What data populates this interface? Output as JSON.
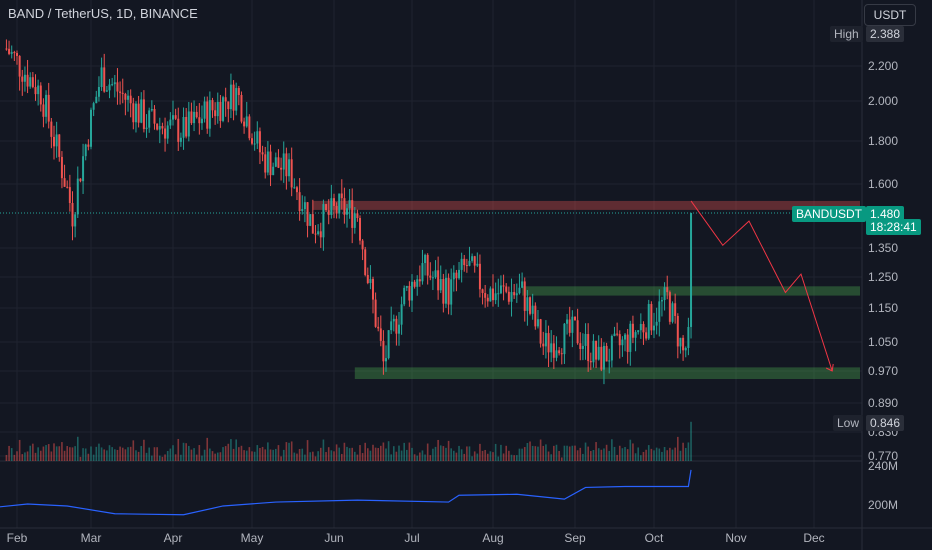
{
  "header": {
    "title": "BAND / TetherUS, 1D, BINANCE",
    "currency_button": "USDT"
  },
  "price_scale": {
    "ticks": [
      "2.200",
      "2.000",
      "1.800",
      "1.600",
      "1.480",
      "1.350",
      "1.250",
      "1.150",
      "1.050",
      "0.970",
      "0.890",
      "0.830",
      "0.770"
    ],
    "high_label": "High",
    "high_value": "2.388",
    "low_label": "Low",
    "low_value": "0.846",
    "symbol_tag": "BANDUSDT",
    "last_price": "1.480",
    "countdown": "18:28:41"
  },
  "volume_scale": {
    "ticks": [
      "240M",
      "200M"
    ]
  },
  "time_axis": {
    "labels": [
      "Feb",
      "Mar",
      "Apr",
      "May",
      "Jun",
      "Jul",
      "Aug",
      "Sep",
      "Oct",
      "Nov",
      "Dec"
    ]
  },
  "colors": {
    "background": "#131722",
    "up": "#26a69a",
    "down": "#ef5350",
    "resistance_zone": "#ef5350",
    "support_zone": "#4caf50",
    "projection": "#f23645",
    "obv": "#2962ff"
  },
  "chart_data": {
    "type": "candlestick",
    "symbol": "BANDUSDT",
    "interval": "1D",
    "exchange": "BINANCE",
    "quote": "USDT",
    "ylim": [
      0.74,
      2.45
    ],
    "high": 2.388,
    "low": 0.846,
    "last": 1.48,
    "key_prices": [
      {
        "date": "2021-01-28",
        "price": 2.3
      },
      {
        "date": "2021-02-10",
        "price": 2.05
      },
      {
        "date": "2021-02-22",
        "price": 1.48
      },
      {
        "date": "2021-03-05",
        "price": 2.15
      },
      {
        "date": "2021-03-22",
        "price": 1.9
      },
      {
        "date": "2021-04-05",
        "price": 1.85
      },
      {
        "date": "2021-04-25",
        "price": 2.05
      },
      {
        "date": "2021-05-05",
        "price": 1.72
      },
      {
        "date": "2021-05-15",
        "price": 1.66
      },
      {
        "date": "2021-05-24",
        "price": 1.43
      },
      {
        "date": "2021-06-03",
        "price": 1.5
      },
      {
        "date": "2021-06-10",
        "price": 1.48
      },
      {
        "date": "2021-06-14",
        "price": 1.25
      },
      {
        "date": "2021-06-20",
        "price": 0.99
      },
      {
        "date": "2021-06-28",
        "price": 1.19
      },
      {
        "date": "2021-07-05",
        "price": 1.28
      },
      {
        "date": "2021-07-15",
        "price": 1.2
      },
      {
        "date": "2021-07-22",
        "price": 1.29
      },
      {
        "date": "2021-07-30",
        "price": 1.2
      },
      {
        "date": "2021-08-12",
        "price": 1.2
      },
      {
        "date": "2021-08-20",
        "price": 1.04
      },
      {
        "date": "2021-09-01",
        "price": 1.08
      },
      {
        "date": "2021-09-10",
        "price": 1.0
      },
      {
        "date": "2021-09-20",
        "price": 1.05
      },
      {
        "date": "2021-10-01",
        "price": 1.13
      },
      {
        "date": "2021-10-06",
        "price": 1.18
      },
      {
        "date": "2021-10-12",
        "price": 1.02
      },
      {
        "date": "2021-10-14",
        "price": 1.05
      },
      {
        "date": "2021-10-15",
        "price": 1.48
      }
    ],
    "zones": [
      {
        "name": "resistance",
        "from": 1.5,
        "to": 1.53,
        "start": "2021-05-24",
        "end": "2021-12-20"
      },
      {
        "name": "support",
        "from": 1.19,
        "to": 1.22,
        "start": "2021-08-12",
        "end": "2021-12-20"
      },
      {
        "name": "support",
        "from": 0.95,
        "to": 0.98,
        "start": "2021-06-09",
        "end": "2021-12-20"
      }
    ],
    "projection": [
      {
        "date": "2021-10-15",
        "price": 1.53
      },
      {
        "date": "2021-10-27",
        "price": 1.36
      },
      {
        "date": "2021-11-06",
        "price": 1.45
      },
      {
        "date": "2021-11-20",
        "price": 1.2
      },
      {
        "date": "2021-11-26",
        "price": 1.26
      },
      {
        "date": "2021-12-08",
        "price": 0.97
      }
    ],
    "obv_ticks": {
      "240M": 240,
      "200M": 200
    },
    "obv": [
      {
        "date": "2021-01-25",
        "value": 198
      },
      {
        "date": "2021-02-05",
        "value": 201
      },
      {
        "date": "2021-02-20",
        "value": 199
      },
      {
        "date": "2021-03-10",
        "value": 191
      },
      {
        "date": "2021-04-05",
        "value": 190
      },
      {
        "date": "2021-04-20",
        "value": 199
      },
      {
        "date": "2021-05-10",
        "value": 203
      },
      {
        "date": "2021-06-10",
        "value": 205
      },
      {
        "date": "2021-07-15",
        "value": 203
      },
      {
        "date": "2021-07-19",
        "value": 210
      },
      {
        "date": "2021-08-10",
        "value": 211
      },
      {
        "date": "2021-08-28",
        "value": 206
      },
      {
        "date": "2021-09-05",
        "value": 218
      },
      {
        "date": "2021-09-20",
        "value": 219
      },
      {
        "date": "2021-10-14",
        "value": 219
      },
      {
        "date": "2021-10-15",
        "value": 236
      }
    ]
  }
}
